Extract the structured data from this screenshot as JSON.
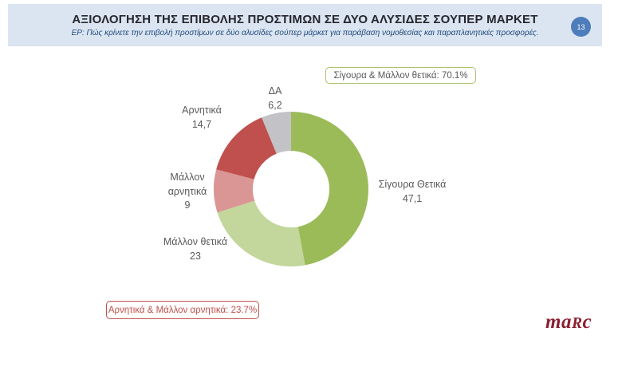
{
  "header": {
    "title": "ΑΞΙΟΛΟΓΗΣΗ ΤΗΣ ΕΠΙΒΟΛΗΣ ΠΡΟΣΤΙΜΩΝ ΣΕ ΔΥΟ ΑΛΥΣΙΔΕΣ ΣΟΥΠΕΡ ΜΑΡΚΕΤ",
    "subtitle": "ΕΡ: Πώς κρίνετε την επιβολή προστίμων σε δύο αλυσίδες σούπερ μάρκετ για παράβαση νομοθεσίας και παραπλανητικές προσφορές.",
    "page_number": "13",
    "band_color": "#dbe5f1",
    "badge_color": "#4d7dba"
  },
  "chart_data": {
    "type": "pie",
    "subtype": "donut",
    "title": "",
    "categories": [
      "Σίγουρα Θετικά",
      "Μάλλον θετικά",
      "Μάλλον αρνητικά",
      "Αρνητικά",
      "ΔΑ"
    ],
    "values": [
      47.1,
      23,
      9,
      14.7,
      6.2
    ],
    "value_labels": [
      "47,1",
      "23",
      "9",
      "14,7",
      "6,2"
    ],
    "colors": [
      "#9BBB59",
      "#C3D69B",
      "#D99694",
      "#C0504D",
      "#C3C3C7"
    ],
    "start_angle_deg": 0,
    "direction": "clockwise",
    "inner_radius_ratio": 0.49,
    "legend_position": "none",
    "labels_outside": true
  },
  "annotations": {
    "positive_total": {
      "label": "Σίγουρα & Μάλλον θετικά: 70.1%",
      "border_color": "#a8c46f",
      "text_color": "#595959"
    },
    "negative_total": {
      "label": "Αρνητικά & Μάλλον αρνητικά: 23.7%",
      "border_color": "#C0504D",
      "text_color": "#C0504D"
    }
  },
  "logo": {
    "part1": "ma",
    "part2": "R",
    "part3": "c",
    "color": "#8C1F2F"
  }
}
